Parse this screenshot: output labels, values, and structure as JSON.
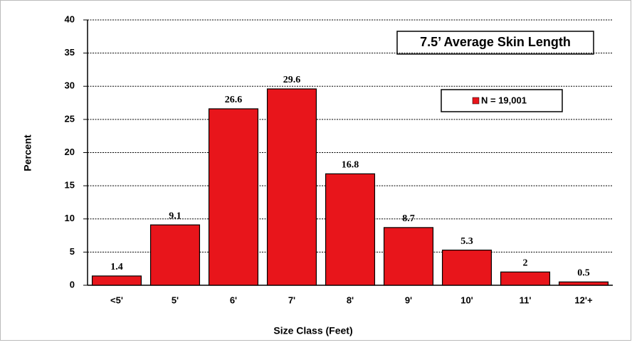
{
  "chart_data": {
    "type": "bar",
    "title": "7.5’ Average Skin Length",
    "x_label": "Size Class (Feet)",
    "y_label": "Percent",
    "categories": [
      "<5'",
      "5'",
      "6'",
      "7'",
      "8'",
      "9'",
      "10'",
      "11'",
      "12'+"
    ],
    "series": [
      {
        "name": "N = 19,001",
        "color": "#e8151b",
        "values": [
          1.4,
          9.1,
          26.6,
          29.6,
          16.8,
          8.7,
          5.3,
          2,
          0.5
        ]
      }
    ],
    "ylim": [
      0,
      40
    ],
    "yticks": [
      0,
      5,
      10,
      15,
      20,
      25,
      30,
      35,
      40
    ],
    "grid": true
  }
}
